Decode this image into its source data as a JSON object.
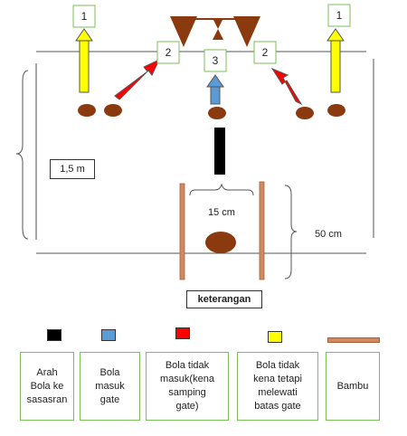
{
  "markers": {
    "yellow_left": "1",
    "yellow_right": "1",
    "red_left": "2",
    "red_right": "2",
    "blue": "3"
  },
  "dimensions": {
    "left_height": "1,5 m",
    "gate_width": "15 cm",
    "right_height": "50 cm"
  },
  "legend": {
    "title": "keterangan",
    "items": [
      {
        "label": "Arah\nBola ke\nsasasran",
        "color": "#000000"
      },
      {
        "label": "Bola\nmasuk\ngate",
        "color": "#5B9BD5"
      },
      {
        "label": "Bola tidak\nmasuk(kena\nsamping\ngate)",
        "color": "#FF0000"
      },
      {
        "label": "Bola tidak\nkena tetapi\nmelewati\nbatas gate",
        "color": "#FFFF00"
      },
      {
        "label": "Bambu",
        "color": "#D2895E"
      }
    ]
  },
  "colors": {
    "ball": "#8B3A0F",
    "yellow": "#FFFF00",
    "red": "#FF0000",
    "blue": "#5B9BD5",
    "black": "#000000",
    "bamboo": "#D2895E",
    "box_border": "#7bbf5a"
  }
}
